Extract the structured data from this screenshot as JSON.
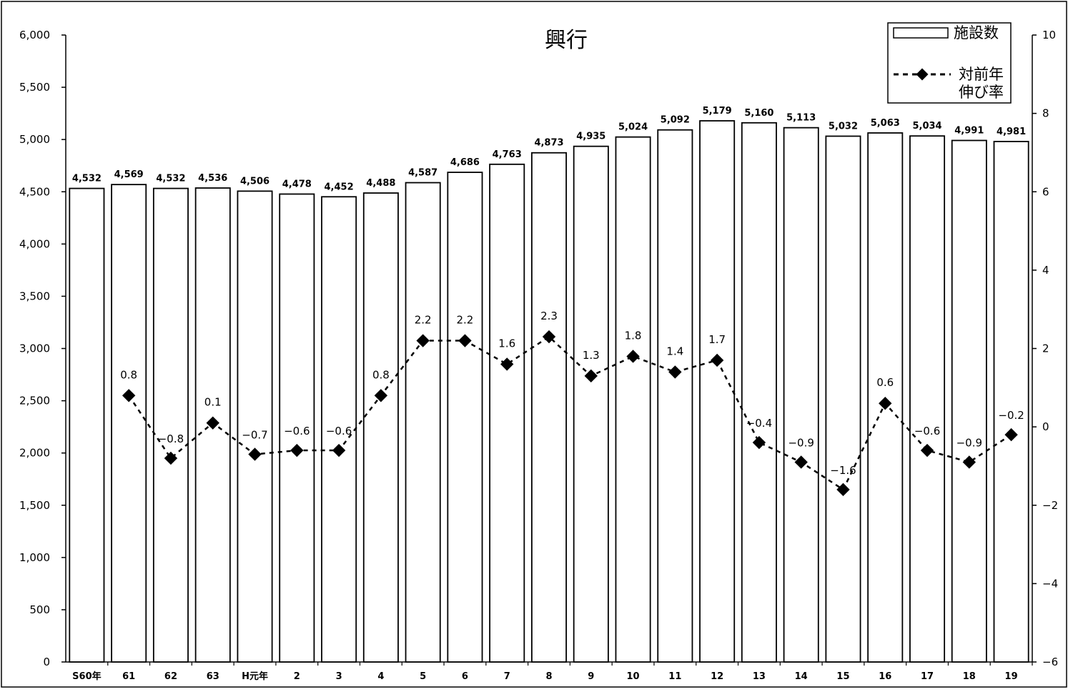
{
  "chart_data": {
    "type": "bar",
    "title": "興行",
    "categories": [
      "S60年",
      "61",
      "62",
      "63",
      "H元年",
      "2",
      "3",
      "4",
      "5",
      "6",
      "7",
      "8",
      "9",
      "10",
      "11",
      "12",
      "13",
      "14",
      "15",
      "16",
      "17",
      "18",
      "19"
    ],
    "series": [
      {
        "name": "施設数",
        "type": "bar",
        "axis": "left",
        "values": [
          4532,
          4569,
          4532,
          4536,
          4506,
          4478,
          4452,
          4488,
          4587,
          4686,
          4763,
          4873,
          4935,
          5024,
          5092,
          5179,
          5160,
          5113,
          5032,
          5063,
          5034,
          4991,
          4981
        ],
        "labels": [
          "4,532",
          "4,569",
          "4,532",
          "4,536",
          "4,506",
          "4,478",
          "4,452",
          "4,488",
          "4,587",
          "4,686",
          "4,763",
          "4,873",
          "4,935",
          "5,024",
          "5,092",
          "5,179",
          "5,160",
          "5,113",
          "5,032",
          "5,063",
          "5,034",
          "4,991",
          "4,981"
        ]
      },
      {
        "name": "対前年伸び率",
        "type": "line",
        "axis": "right",
        "style": "dashed",
        "marker": "diamond",
        "values": [
          null,
          0.8,
          -0.8,
          0.1,
          -0.7,
          -0.6,
          -0.6,
          0.8,
          2.2,
          2.2,
          1.6,
          2.3,
          1.3,
          1.8,
          1.4,
          1.7,
          -0.4,
          -0.9,
          -1.6,
          0.6,
          -0.6,
          -0.9,
          -0.2
        ],
        "labels": [
          "",
          "0.8",
          "−0.8",
          "0.1",
          "−0.7",
          "−0.6",
          "−0.6",
          "0.8",
          "2.2",
          "2.2",
          "1.6",
          "2.3",
          "1.3",
          "1.8",
          "1.4",
          "1.7",
          "−0.4",
          "−0.9",
          "−1.6",
          "0.6",
          "−0.6",
          "−0.9",
          "−0.2"
        ]
      }
    ],
    "y_left": {
      "ylim": [
        0,
        6000
      ],
      "ticks": [
        0,
        500,
        1000,
        1500,
        2000,
        2500,
        3000,
        3500,
        4000,
        4500,
        5000,
        5500,
        6000
      ],
      "tick_labels": [
        "0",
        "500",
        "1,000",
        "1,500",
        "2,000",
        "2,500",
        "3,000",
        "3,500",
        "4,000",
        "4,500",
        "5,000",
        "5,500",
        "6,000"
      ]
    },
    "y_right": {
      "ylim": [
        -6,
        10
      ],
      "ticks": [
        -6,
        -4,
        -2,
        0,
        2,
        4,
        6,
        8,
        10
      ],
      "tick_labels": [
        "−6",
        "−4",
        "−2",
        "0",
        "2",
        "4",
        "6",
        "8",
        "10"
      ]
    },
    "legend": {
      "position": "top-right",
      "entries": [
        {
          "lines": [
            "施設数"
          ],
          "symbol": "bar"
        },
        {
          "lines": [
            "対前年",
            "伸び率"
          ],
          "symbol": "dashed-diamond"
        }
      ]
    },
    "grid": false,
    "colors": {
      "bar_fill": "#ffffff",
      "stroke": "#000000",
      "background": "#ffffff"
    }
  }
}
